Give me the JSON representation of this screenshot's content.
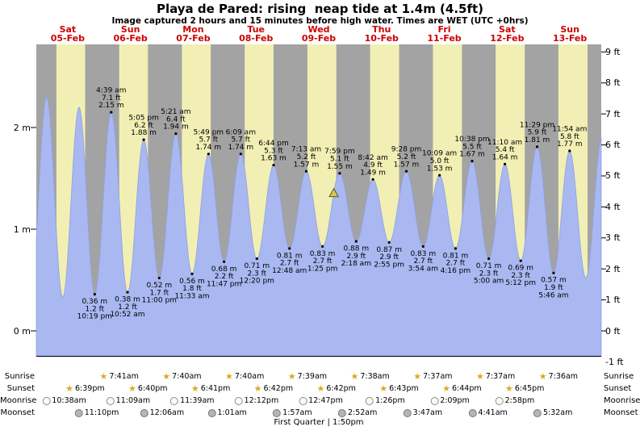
{
  "header": {
    "title": "Playa de Pared: rising  neap tide at 1.4m (4.5ft)",
    "subtitle": "Image captured 2 hours and 15 minutes before high water. Times are WET (UTC +0hrs)"
  },
  "chart_data": {
    "type": "area",
    "title": "Playa de Pared: rising  neap tide at 1.4m (4.5ft)",
    "subtitle": "Image captured 2 hours and 15 minutes before high water. Times are WET (UTC +0hrs)",
    "days": [
      {
        "name": "Sat",
        "date": "05-Feb"
      },
      {
        "name": "Sun",
        "date": "06-Feb"
      },
      {
        "name": "Mon",
        "date": "07-Feb"
      },
      {
        "name": "Tue",
        "date": "08-Feb"
      },
      {
        "name": "Wed",
        "date": "09-Feb"
      },
      {
        "name": "Thu",
        "date": "10-Feb"
      },
      {
        "name": "Fri",
        "date": "11-Feb"
      },
      {
        "name": "Sat",
        "date": "12-Feb"
      },
      {
        "name": "Sun",
        "date": "13-Feb"
      }
    ],
    "y_axis_left": {
      "unit": "m",
      "ticks": [
        {
          "label": "2 m",
          "value_m": 2
        },
        {
          "label": "1 m",
          "value_m": 1
        },
        {
          "label": "0 m",
          "value_m": 0
        }
      ]
    },
    "y_axis_right": {
      "unit": "ft",
      "ticks": [
        {
          "label": "9 ft",
          "value_ft": 9
        },
        {
          "label": "8 ft",
          "value_ft": 8
        },
        {
          "label": "7 ft",
          "value_ft": 7
        },
        {
          "label": "6 ft",
          "value_ft": 6
        },
        {
          "label": "5 ft",
          "value_ft": 5
        },
        {
          "label": "4 ft",
          "value_ft": 4
        },
        {
          "label": "3 ft",
          "value_ft": 3
        },
        {
          "label": "2 ft",
          "value_ft": 2
        },
        {
          "label": "1 ft",
          "value_ft": 1
        },
        {
          "label": "0 ft",
          "value_ft": 0
        },
        {
          "label": "-1 ft",
          "value_ft": -1
        }
      ]
    },
    "daylight": [
      {
        "sunrise_h": 7.68,
        "sunset_h": 18.65
      },
      {
        "sunrise_h": 7.68,
        "sunset_h": 18.67
      },
      {
        "sunrise_h": 7.67,
        "sunset_h": 18.68
      },
      {
        "sunrise_h": 7.67,
        "sunset_h": 18.7
      },
      {
        "sunrise_h": 7.65,
        "sunset_h": 18.7
      },
      {
        "sunrise_h": 7.63,
        "sunset_h": 18.72
      },
      {
        "sunrise_h": 7.62,
        "sunset_h": 18.73
      },
      {
        "sunrise_h": 7.62,
        "sunset_h": 18.75
      },
      {
        "sunrise_h": 7.6,
        "sunset_h": 18.75
      }
    ],
    "tide_events": [
      {
        "t": -2.2,
        "height_m": 0.35,
        "kind": "low",
        "labeled": false
      },
      {
        "t": 3.9,
        "height_m": 2.3,
        "kind": "high",
        "labeled": false
      },
      {
        "t": 10.1,
        "height_m": 0.33,
        "kind": "low",
        "labeled": false
      },
      {
        "t": 16.35,
        "height_m": 2.2,
        "kind": "high",
        "labeled": false
      },
      {
        "t": 22.32,
        "height_m": 0.36,
        "kind": "low",
        "labeled": true,
        "time": "10:19 pm",
        "ft": "1.2 ft",
        "m": "0.36 m"
      },
      {
        "t": 28.65,
        "height_m": 2.15,
        "kind": "high",
        "labeled": true,
        "time": "4:39 am",
        "ft": "7.1 ft",
        "m": "2.15 m"
      },
      {
        "t": 34.87,
        "height_m": 0.38,
        "kind": "low",
        "labeled": true,
        "time": "10:52 am",
        "ft": "1.2 ft",
        "m": "0.38 m"
      },
      {
        "t": 41.08,
        "height_m": 1.88,
        "kind": "high",
        "labeled": true,
        "time": "5:05 pm",
        "ft": "6.2 ft",
        "m": "1.88 m"
      },
      {
        "t": 47.0,
        "height_m": 0.52,
        "kind": "low",
        "labeled": true,
        "time": "11:00 pm",
        "ft": "1.7 ft",
        "m": "0.52 m"
      },
      {
        "t": 53.35,
        "height_m": 1.94,
        "kind": "high",
        "labeled": true,
        "time": "5:21 am",
        "ft": "6.4 ft",
        "m": "1.94 m"
      },
      {
        "t": 59.55,
        "height_m": 0.56,
        "kind": "low",
        "labeled": true,
        "time": "11:33 am",
        "ft": "1.8 ft",
        "m": "0.56 m"
      },
      {
        "t": 65.82,
        "height_m": 1.74,
        "kind": "high",
        "labeled": true,
        "time": "5:49 pm",
        "ft": "5.7 ft",
        "m": "1.74 m"
      },
      {
        "t": 71.78,
        "height_m": 0.68,
        "kind": "low",
        "labeled": true,
        "time": "11:47 pm",
        "ft": "2.2 ft",
        "m": "0.68 m"
      },
      {
        "t": 78.15,
        "height_m": 1.74,
        "kind": "high",
        "labeled": true,
        "time": "6:09 am",
        "ft": "5.7 ft",
        "m": "1.74 m"
      },
      {
        "t": 84.33,
        "height_m": 0.71,
        "kind": "low",
        "labeled": true,
        "time": "12:20 pm",
        "ft": "2.3 ft",
        "m": "0.71 m"
      },
      {
        "t": 90.73,
        "height_m": 1.63,
        "kind": "high",
        "labeled": true,
        "time": "6:44 pm",
        "ft": "5.3 ft",
        "m": "1.63 m"
      },
      {
        "t": 96.8,
        "height_m": 0.81,
        "kind": "low",
        "labeled": true,
        "time": "12:48 am",
        "ft": "2.7 ft",
        "m": "0.81 m"
      },
      {
        "t": 103.22,
        "height_m": 1.57,
        "kind": "high",
        "labeled": true,
        "time": "7:13 am",
        "ft": "5.2 ft",
        "m": "1.57 m"
      },
      {
        "t": 109.42,
        "height_m": 0.83,
        "kind": "low",
        "labeled": true,
        "time": "1:25 pm",
        "ft": "2.7 ft",
        "m": "0.83 m"
      },
      {
        "t": 115.98,
        "height_m": 1.55,
        "kind": "high",
        "labeled": true,
        "time": "7:59 pm",
        "ft": "5.1 ft",
        "m": "1.55 m"
      },
      {
        "t": 122.3,
        "height_m": 0.88,
        "kind": "low",
        "labeled": true,
        "time": "2:18 am",
        "ft": "2.9 ft",
        "m": "0.88 m"
      },
      {
        "t": 128.7,
        "height_m": 1.49,
        "kind": "high",
        "labeled": true,
        "time": "8:42 am",
        "ft": "4.9 ft",
        "m": "1.49 m"
      },
      {
        "t": 134.92,
        "height_m": 0.87,
        "kind": "low",
        "labeled": true,
        "time": "2:55 pm",
        "ft": "2.9 ft",
        "m": "0.87 m"
      },
      {
        "t": 141.47,
        "height_m": 1.57,
        "kind": "high",
        "labeled": true,
        "time": "9:28 pm",
        "ft": "5.2 ft",
        "m": "1.57 m"
      },
      {
        "t": 147.9,
        "height_m": 0.83,
        "kind": "low",
        "labeled": true,
        "time": "3:54 am",
        "ft": "2.7 ft",
        "m": "0.83 m"
      },
      {
        "t": 154.15,
        "height_m": 1.53,
        "kind": "high",
        "labeled": true,
        "time": "10:09 am",
        "ft": "5.0 ft",
        "m": "1.53 m"
      },
      {
        "t": 160.27,
        "height_m": 0.81,
        "kind": "low",
        "labeled": true,
        "time": "4:16 pm",
        "ft": "2.7 ft",
        "m": "0.81 m"
      },
      {
        "t": 166.63,
        "height_m": 1.67,
        "kind": "high",
        "labeled": true,
        "time": "10:38 pm",
        "ft": "5.5 ft",
        "m": "1.67 m"
      },
      {
        "t": 173.0,
        "height_m": 0.71,
        "kind": "low",
        "labeled": true,
        "time": "5:00 am",
        "ft": "2.3 ft",
        "m": "0.71 m"
      },
      {
        "t": 179.17,
        "height_m": 1.64,
        "kind": "high",
        "labeled": true,
        "time": "11:10 am",
        "ft": "5.4 ft",
        "m": "1.64 m"
      },
      {
        "t": 185.2,
        "height_m": 0.69,
        "kind": "low",
        "labeled": true,
        "time": "5:12 pm",
        "ft": "2.3 ft",
        "m": "0.69 m"
      },
      {
        "t": 191.48,
        "height_m": 1.81,
        "kind": "high",
        "labeled": true,
        "time": "11:29 pm",
        "ft": "5.9 ft",
        "m": "1.81 m"
      },
      {
        "t": 197.77,
        "height_m": 0.57,
        "kind": "low",
        "labeled": true,
        "time": "5:46 am",
        "ft": "1.9 ft",
        "m": "0.57 m"
      },
      {
        "t": 203.9,
        "height_m": 1.77,
        "kind": "high",
        "labeled": true,
        "time": "11:54 am",
        "ft": "5.8 ft",
        "m": "1.77 m"
      },
      {
        "t": 210.1,
        "height_m": 0.52,
        "kind": "low",
        "labeled": false
      },
      {
        "t": 216.3,
        "height_m": 1.9,
        "kind": "high",
        "labeled": false
      }
    ],
    "current_marker": {
      "t": 113.73,
      "height_m": 1.4
    },
    "colors": {
      "day_band": "#f2efb5",
      "night_band": "#a3a3a3",
      "tide_fill": "#a9b8f1",
      "tide_stroke": "#8fa0e0",
      "date_red": "#cc0000",
      "marker_fill": "#d6ca4e",
      "marker_stroke": "#5c581f"
    }
  },
  "astro": {
    "rows": [
      {
        "label": "Sunrise",
        "type": "sunrise",
        "entries": [
          {
            "day": 1,
            "time": "7:41am"
          },
          {
            "day": 2,
            "time": "7:40am"
          },
          {
            "day": 3,
            "time": "7:40am"
          },
          {
            "day": 4,
            "time": "7:39am"
          },
          {
            "day": 5,
            "time": "7:38am"
          },
          {
            "day": 6,
            "time": "7:37am"
          },
          {
            "day": 7,
            "time": "7:37am"
          },
          {
            "day": 8,
            "time": "7:36am"
          }
        ]
      },
      {
        "label": "Sunset",
        "type": "sunset",
        "entries": [
          {
            "day": 0,
            "time": "6:39pm"
          },
          {
            "day": 1,
            "time": "6:40pm"
          },
          {
            "day": 2,
            "time": "6:41pm"
          },
          {
            "day": 3,
            "time": "6:42pm"
          },
          {
            "day": 4,
            "time": "6:42pm"
          },
          {
            "day": 5,
            "time": "6:43pm"
          },
          {
            "day": 6,
            "time": "6:44pm"
          },
          {
            "day": 7,
            "time": "6:45pm"
          }
        ]
      },
      {
        "label": "Moonrise",
        "type": "moonrise",
        "entries": [
          {
            "day": 0,
            "time": "10:38am"
          },
          {
            "day": 1,
            "time": "11:09am"
          },
          {
            "day": 2,
            "time": "11:39am"
          },
          {
            "day": 3,
            "time": "12:12pm"
          },
          {
            "day": 4,
            "time": "12:47pm"
          },
          {
            "day": 5,
            "time": "1:26pm"
          },
          {
            "day": 6,
            "time": "2:09pm"
          },
          {
            "day": 7,
            "time": "2:58pm"
          }
        ]
      },
      {
        "label": "Moonset",
        "type": "moonset",
        "entries": [
          {
            "day": 0,
            "time": "11:10pm"
          },
          {
            "day": 2,
            "time": "12:06am"
          },
          {
            "day": 3,
            "time": "1:01am"
          },
          {
            "day": 4,
            "time": "1:57am"
          },
          {
            "day": 5,
            "time": "2:52am"
          },
          {
            "day": 6,
            "time": "3:47am"
          },
          {
            "day": 7,
            "time": "4:41am"
          },
          {
            "day": 8,
            "time": "5:32am"
          }
        ]
      }
    ],
    "footer": "First Quarter | 1:50pm"
  }
}
